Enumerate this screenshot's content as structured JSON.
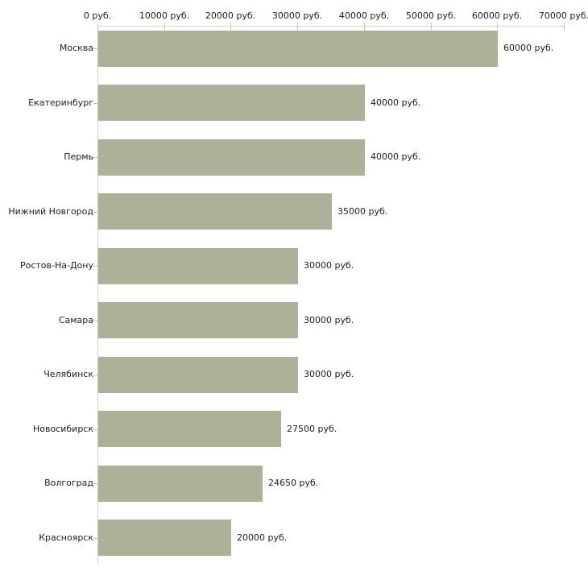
{
  "chart_data": {
    "type": "bar",
    "orientation": "horizontal",
    "title": "",
    "categories": [
      "Москва",
      "Екатеринбург",
      "Пермь",
      "Нижний Новгород",
      "Ростов-На-Дону",
      "Самара",
      "Челябинск",
      "Новосибирск",
      "Волгоград",
      "Красноярск"
    ],
    "values": [
      60000,
      40000,
      40000,
      35000,
      30000,
      30000,
      30000,
      27500,
      24650,
      20000
    ],
    "value_labels": [
      "60000 руб.",
      "40000 руб.",
      "40000 руб.",
      "35000 руб.",
      "30000 руб.",
      "30000 руб.",
      "30000 руб.",
      "27500 руб.",
      "24650 руб.",
      "20000 руб."
    ],
    "unit": "руб.",
    "x_axis": {
      "position": "top",
      "min": 0,
      "max": 70000,
      "tick_values": [
        0,
        10000,
        20000,
        30000,
        40000,
        50000,
        60000,
        70000
      ],
      "tick_labels": [
        "0 руб.",
        "10000 руб.",
        "20000 руб.",
        "30000 руб.",
        "40000 руб.",
        "50000 руб.",
        "60000 руб.",
        "70000 руб."
      ]
    },
    "grid": false,
    "legend": null,
    "colors": {
      "bar": "#acb198",
      "axis_line_horizontal": "#d2d5c9",
      "axis_line_vertical": "#cdd0c4",
      "x_tick": "#c6c79b",
      "category_tick": "#c0c0b4",
      "text": "#1f1f1f",
      "background": "#ffffff"
    }
  }
}
